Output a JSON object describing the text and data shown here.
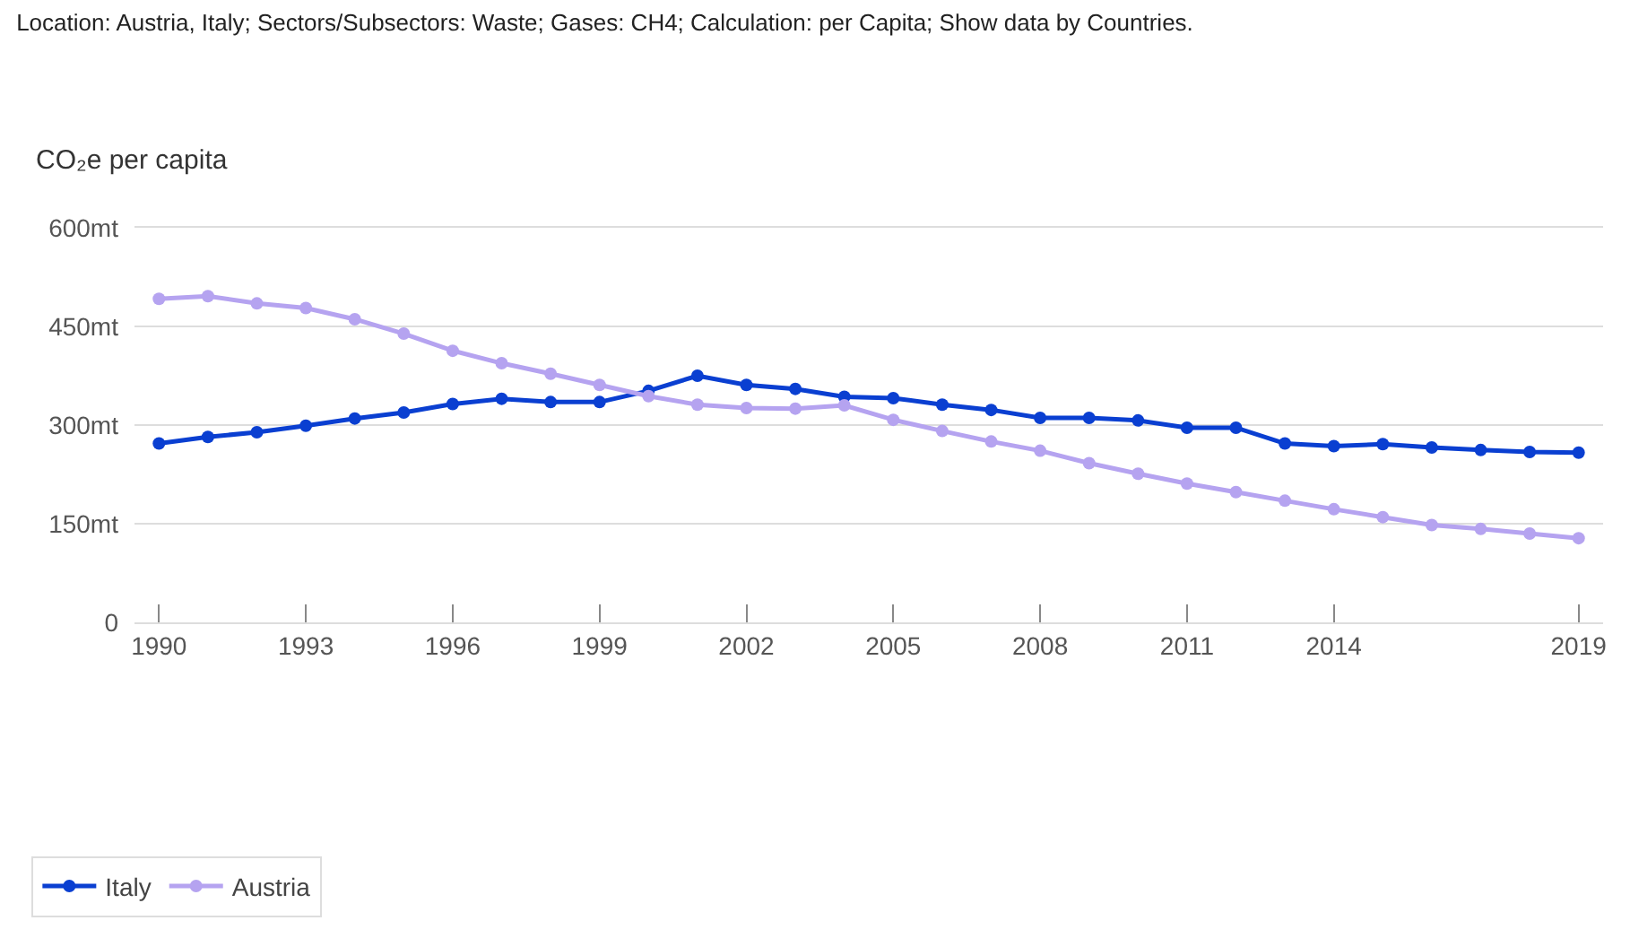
{
  "chart_data": {
    "type": "line",
    "title": "Location: Austria, Italy; Sectors/Subsectors: Waste; Gases: CH4; Calculation: per Capita; Show data by Countries.",
    "ylabel": "CO₂e per capita",
    "x": [
      1990,
      1991,
      1992,
      1993,
      1994,
      1995,
      1996,
      1997,
      1998,
      1999,
      2000,
      2001,
      2002,
      2003,
      2004,
      2005,
      2006,
      2007,
      2008,
      2009,
      2010,
      2011,
      2012,
      2013,
      2014,
      2015,
      2016,
      2017,
      2018,
      2019
    ],
    "series": [
      {
        "name": "Italy",
        "color": "#0a3fd1",
        "values": [
          272,
          282,
          289,
          299,
          310,
          319,
          332,
          340,
          335,
          335,
          352,
          375,
          361,
          355,
          343,
          341,
          331,
          323,
          311,
          311,
          307,
          296,
          296,
          272,
          268,
          271,
          266,
          262,
          259,
          258
        ]
      },
      {
        "name": "Austria",
        "color": "#b5a3f0",
        "values": [
          492,
          496,
          485,
          478,
          461,
          439,
          413,
          394,
          378,
          361,
          344,
          331,
          326,
          325,
          330,
          308,
          291,
          275,
          261,
          242,
          226,
          211,
          198,
          185,
          172,
          160,
          148,
          142,
          135,
          128
        ]
      }
    ],
    "xlim": [
      1989.5,
      2019.5
    ],
    "xticks": [
      1990,
      1993,
      1996,
      1999,
      2002,
      2005,
      2008,
      2011,
      2014,
      2019
    ],
    "ylim": [
      0,
      600
    ],
    "yticks": [
      0,
      {
        "value": 150,
        "label": "150mt"
      },
      {
        "value": 300,
        "label": "300mt"
      },
      {
        "value": 450,
        "label": "450mt"
      },
      {
        "value": 600,
        "label": "600mt"
      }
    ],
    "grid": "y",
    "legend": "bottom left",
    "marker": "circle",
    "line_style": "solid"
  }
}
